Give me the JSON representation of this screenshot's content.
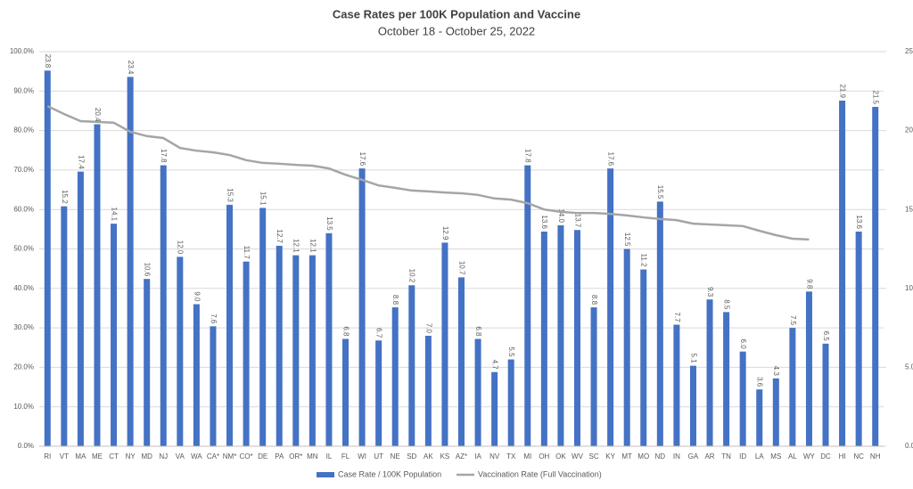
{
  "chart_data": {
    "type": "bar-line",
    "title": "Case Rates per 100K Population and Vaccine",
    "subtitle": "October 18 - October 25, 2022",
    "categories": [
      "RI",
      "VT",
      "MA",
      "ME",
      "CT",
      "NY",
      "MD",
      "NJ",
      "VA",
      "WA",
      "CA*",
      "NM*",
      "CO*",
      "DE",
      "PA",
      "OR*",
      "MN",
      "IL",
      "FL",
      "WI",
      "UT",
      "NE",
      "SD",
      "AK",
      "KS",
      "AZ*",
      "IA",
      "NV",
      "TX",
      "MI",
      "OH",
      "OK",
      "WV",
      "SC",
      "KY",
      "MT",
      "MO",
      "ND",
      "IN",
      "GA",
      "AR",
      "TN",
      "ID",
      "LA",
      "MS",
      "AL",
      "WY",
      "DC",
      "HI",
      "NC",
      "NH"
    ],
    "series": [
      {
        "name": "Case Rate / 100K Population",
        "type": "bar",
        "axis": "y2",
        "color": "#4472c4",
        "values": [
          23.8,
          15.2,
          17.4,
          20.4,
          14.1,
          23.4,
          10.6,
          17.8,
          12.0,
          9.0,
          7.6,
          15.3,
          11.7,
          15.1,
          12.7,
          12.1,
          12.1,
          13.5,
          6.8,
          17.6,
          6.7,
          8.8,
          10.2,
          7.0,
          12.9,
          10.7,
          6.8,
          4.7,
          5.5,
          17.8,
          13.6,
          14.0,
          13.7,
          8.8,
          17.6,
          12.5,
          11.2,
          15.5,
          7.7,
          5.1,
          9.3,
          8.5,
          6.0,
          3.6,
          4.3,
          7.5,
          9.8,
          6.5,
          21.9,
          13.6,
          21.5
        ],
        "value_labels": [
          "23.8",
          "15.2",
          "17.4",
          "20.4",
          "14.1",
          "23.4",
          "10.6",
          "17.8",
          "12.0",
          "9.0",
          "7.6",
          "15.3",
          "11.7",
          "15.1",
          "12.7",
          "12.1",
          "12.1",
          "13.5",
          "6.8",
          "17.6",
          "6.7",
          "8.8",
          "10.2",
          "7.0",
          "12.9",
          "10.7",
          "6.8",
          "4.7",
          "5.5",
          "17.8",
          "13.6",
          "14.0",
          "13.7",
          "8.8",
          "17.6",
          "12.5",
          "11.2",
          "15.5",
          "7.7",
          "5.1",
          "9.3",
          "8.5",
          "6.0",
          "3.6",
          "4.3",
          "7.5",
          "9.8",
          "6.5",
          "21.9",
          "13.6",
          "21.5"
        ]
      },
      {
        "name": "Vaccination Rate (Full Vaccination)",
        "type": "line",
        "axis": "y",
        "color": "#a5a5a5",
        "values": [
          86.2,
          84.2,
          82.4,
          82.2,
          82.0,
          79.7,
          78.6,
          78.1,
          75.6,
          74.9,
          74.5,
          73.8,
          72.5,
          71.8,
          71.6,
          71.3,
          71.1,
          70.4,
          68.8,
          67.5,
          66.1,
          65.5,
          64.8,
          64.6,
          64.3,
          64.1,
          63.7,
          62.8,
          62.5,
          61.6,
          60.0,
          59.4,
          59.1,
          59.1,
          58.9,
          58.5,
          58.0,
          57.6,
          57.3,
          56.4,
          56.2,
          56.0,
          55.8,
          54.6,
          53.5,
          52.6,
          52.4,
          null,
          null,
          null,
          null
        ]
      }
    ],
    "ylim": [
      0,
      100
    ],
    "yticks": [
      {
        "value": 0,
        "label": "0.0%"
      },
      {
        "value": 10,
        "label": "10.0%"
      },
      {
        "value": 20,
        "label": "20.0%"
      },
      {
        "value": 30,
        "label": "30.0%"
      },
      {
        "value": 40,
        "label": "40.0%"
      },
      {
        "value": 50,
        "label": "50.0%"
      },
      {
        "value": 60,
        "label": "60.0%"
      },
      {
        "value": 70,
        "label": "70.0%"
      },
      {
        "value": 80,
        "label": "80.0%"
      },
      {
        "value": 90,
        "label": "90.0%"
      },
      {
        "value": 100,
        "label": "100.0%"
      }
    ],
    "y2lim": [
      0,
      25
    ],
    "y2ticks": [
      {
        "value": 0,
        "label": "0.0"
      },
      {
        "value": 5,
        "label": "5.0"
      },
      {
        "value": 10,
        "label": "10.0"
      },
      {
        "value": 15,
        "label": "15.0"
      },
      {
        "value": 20,
        "label": "20.0"
      },
      {
        "value": 25,
        "label": "25.0"
      }
    ],
    "legend": "bottom"
  }
}
